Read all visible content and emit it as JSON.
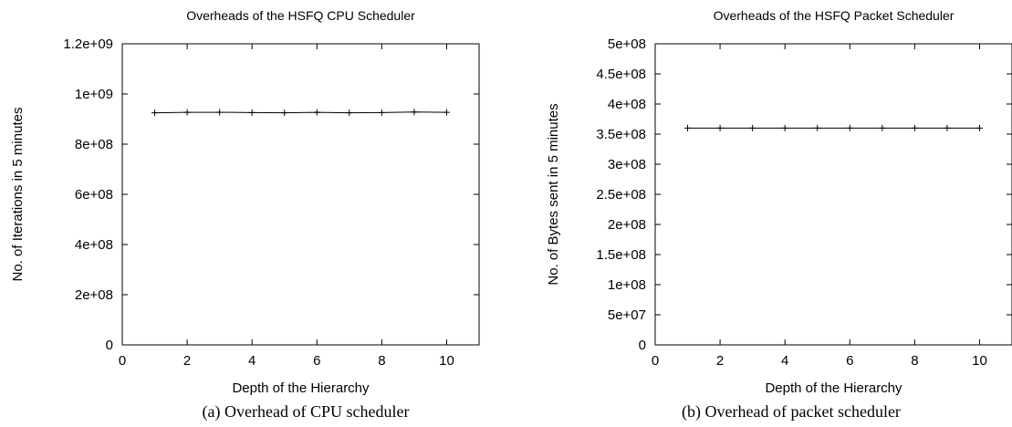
{
  "chart_data": [
    {
      "type": "line",
      "title": "Overheads of the HSFQ CPU Scheduler",
      "xlabel": "Depth of the Hierarchy",
      "ylabel": "No. of Iterations in 5 minutes",
      "xlim": [
        0,
        11
      ],
      "ylim": [
        0,
        1200000000
      ],
      "xticks": [
        "0",
        "2",
        "4",
        "6",
        "8",
        "10"
      ],
      "yticks": [
        "0",
        "2e+08",
        "4e+08",
        "6e+08",
        "8e+08",
        "1e+09",
        "1.2e+09"
      ],
      "x": [
        1,
        2,
        3,
        4,
        5,
        6,
        7,
        8,
        9,
        10
      ],
      "y": [
        925000000,
        927000000,
        927000000,
        926000000,
        925000000,
        927000000,
        925000000,
        926000000,
        928000000,
        927000000
      ],
      "caption": "(a) Overhead of CPU scheduler"
    },
    {
      "type": "line",
      "title": "Overheads of the HSFQ Packet Scheduler",
      "xlabel": "Depth of the Hierarchy",
      "ylabel": "No. of Bytes sent in 5 minutes",
      "xlim": [
        0,
        11
      ],
      "ylim": [
        0,
        500000000
      ],
      "xticks": [
        "0",
        "2",
        "4",
        "6",
        "8",
        "10"
      ],
      "yticks": [
        "0",
        "5e+07",
        "1e+08",
        "1.5e+08",
        "2e+08",
        "2.5e+08",
        "3e+08",
        "3.5e+08",
        "4e+08",
        "4.5e+08",
        "5e+08"
      ],
      "x": [
        1,
        2,
        3,
        4,
        5,
        6,
        7,
        8,
        9,
        10
      ],
      "y": [
        360000000,
        360000000,
        360000000,
        360000000,
        360000000,
        360000000,
        360000000,
        360000000,
        360000000,
        360000000
      ],
      "caption": "(b) Overhead of packet scheduler"
    }
  ]
}
